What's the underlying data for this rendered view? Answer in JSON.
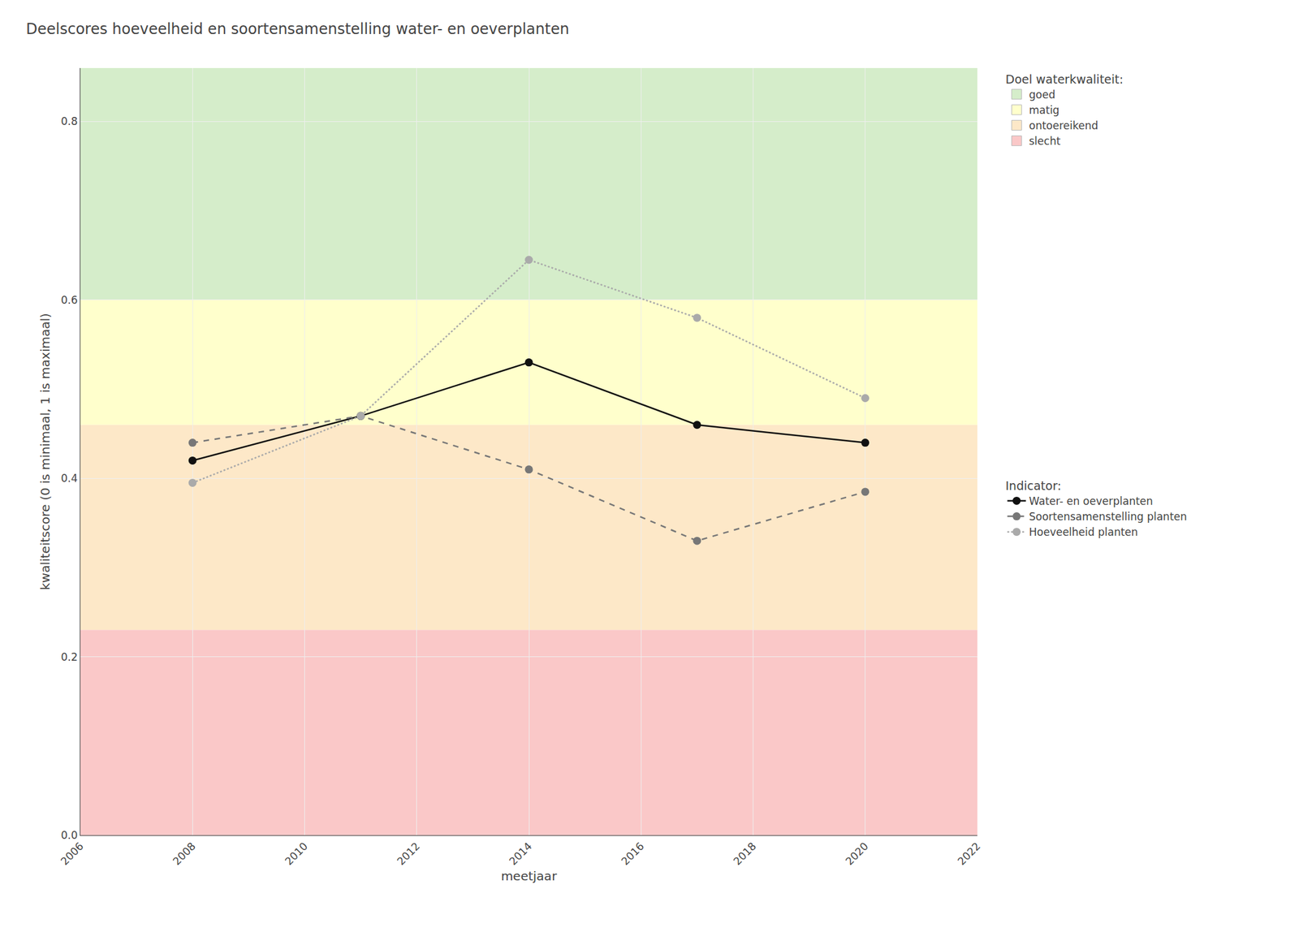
{
  "chart_data": {
    "type": "line",
    "title": "Deelscores hoeveelheid en soortensamenstelling water- en oeverplanten",
    "xlabel": "meetjaar",
    "ylabel": "kwaliteitscore (0 is minimaal, 1 is maximaal)",
    "x": [
      2008,
      2011,
      2014,
      2017,
      2020
    ],
    "xlim": [
      2006,
      2022
    ],
    "ylim": [
      0.0,
      0.86
    ],
    "xticks": [
      2006,
      2008,
      2010,
      2012,
      2014,
      2016,
      2018,
      2020,
      2022
    ],
    "yticks": [
      {
        "value": 0.0,
        "label": "0.0"
      },
      0.2,
      0.4,
      0.6,
      0.8
    ],
    "grid": true,
    "legend": "right",
    "legend_title": "Indicator:",
    "series": [
      {
        "name": "Water- en oeverplanten",
        "color": "#111111",
        "line_style": "solid",
        "marker": "circle",
        "values": [
          0.42,
          0.47,
          0.53,
          0.46,
          0.44
        ]
      },
      {
        "name": "Soortensamenstelling planten",
        "color": "#777777",
        "line_style": "dashed",
        "marker": "circle",
        "values": [
          0.44,
          0.47,
          0.41,
          0.33,
          0.385
        ]
      },
      {
        "name": "Hoeveelheid planten",
        "color": "#aaaaaa",
        "line_style": "dotted",
        "marker": "circle",
        "values": [
          0.395,
          0.47,
          0.645,
          0.58,
          0.49
        ]
      }
    ],
    "zones": {
      "title": "Doel waterkwaliteit:",
      "items": [
        {
          "name": "goed",
          "color": "#d5edca",
          "ymin": 0.6,
          "ymax": 0.86
        },
        {
          "name": "matig",
          "color": "#ffffcc",
          "ymin": 0.46,
          "ymax": 0.6
        },
        {
          "name": "ontoereikend",
          "color": "#fde8c8",
          "ymin": 0.23,
          "ymax": 0.46
        },
        {
          "name": "slecht",
          "color": "#fac8c8",
          "ymin": 0.0,
          "ymax": 0.23
        }
      ]
    }
  }
}
